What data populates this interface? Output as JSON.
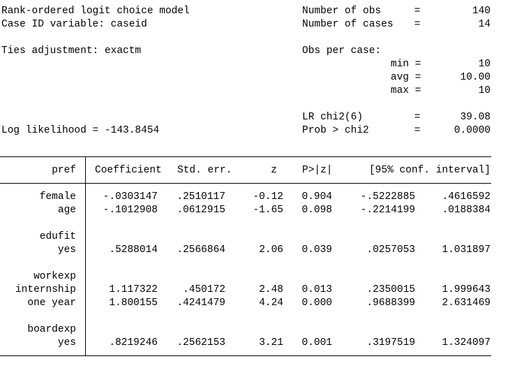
{
  "header": {
    "left": [
      "Rank-ordered logit choice model",
      "Case ID variable: caseid",
      "Ties adjustment: exactm",
      "Log likelihood = -143.8454"
    ],
    "stats": [
      {
        "label": "Number of obs",
        "eq": "=",
        "value": "140"
      },
      {
        "label": "Number of cases",
        "eq": "=",
        "value": "14"
      },
      {
        "label": "Obs per case:"
      },
      {
        "label": "min",
        "eq": "=",
        "value": "10"
      },
      {
        "label": "avg",
        "eq": "=",
        "value": "10.00"
      },
      {
        "label": "max",
        "eq": "=",
        "value": "10"
      },
      {
        "label": "LR chi2(6)",
        "eq": "=",
        "value": "39.08"
      },
      {
        "label": "Prob > chi2",
        "eq": "=",
        "value": "0.0000"
      }
    ]
  },
  "table": {
    "columns": [
      "pref",
      "Coefficient",
      "Std. err.",
      "z",
      "P>|z|",
      "[95% conf. interval]"
    ],
    "rows": [
      {
        "label": "female",
        "cells": [
          "-.0303147",
          ".2510117",
          "-0.12",
          "0.904",
          "-.5222885",
          ".4616592"
        ]
      },
      {
        "label": "age",
        "cells": [
          "-.1012908",
          ".0612915",
          "-1.65",
          "0.098",
          "-.2214199",
          ".0188384"
        ]
      },
      {
        "label": "edufit"
      },
      {
        "label": "yes",
        "cells": [
          ".5288014",
          ".2566864",
          "2.06",
          "0.039",
          ".0257053",
          "1.031897"
        ]
      },
      {
        "label": "workexp"
      },
      {
        "label": "internship",
        "cells": [
          "1.117322",
          ".450172",
          "2.48",
          "0.013",
          ".2350015",
          "1.999643"
        ]
      },
      {
        "label": "one year",
        "cells": [
          "1.800155",
          ".4241479",
          "4.24",
          "0.000",
          ".9688399",
          "2.631469"
        ]
      },
      {
        "label": "boardexp"
      },
      {
        "label": "yes",
        "cells": [
          ".8219246",
          ".2562153",
          "3.21",
          "0.001",
          ".3197519",
          "1.324097"
        ]
      }
    ]
  }
}
